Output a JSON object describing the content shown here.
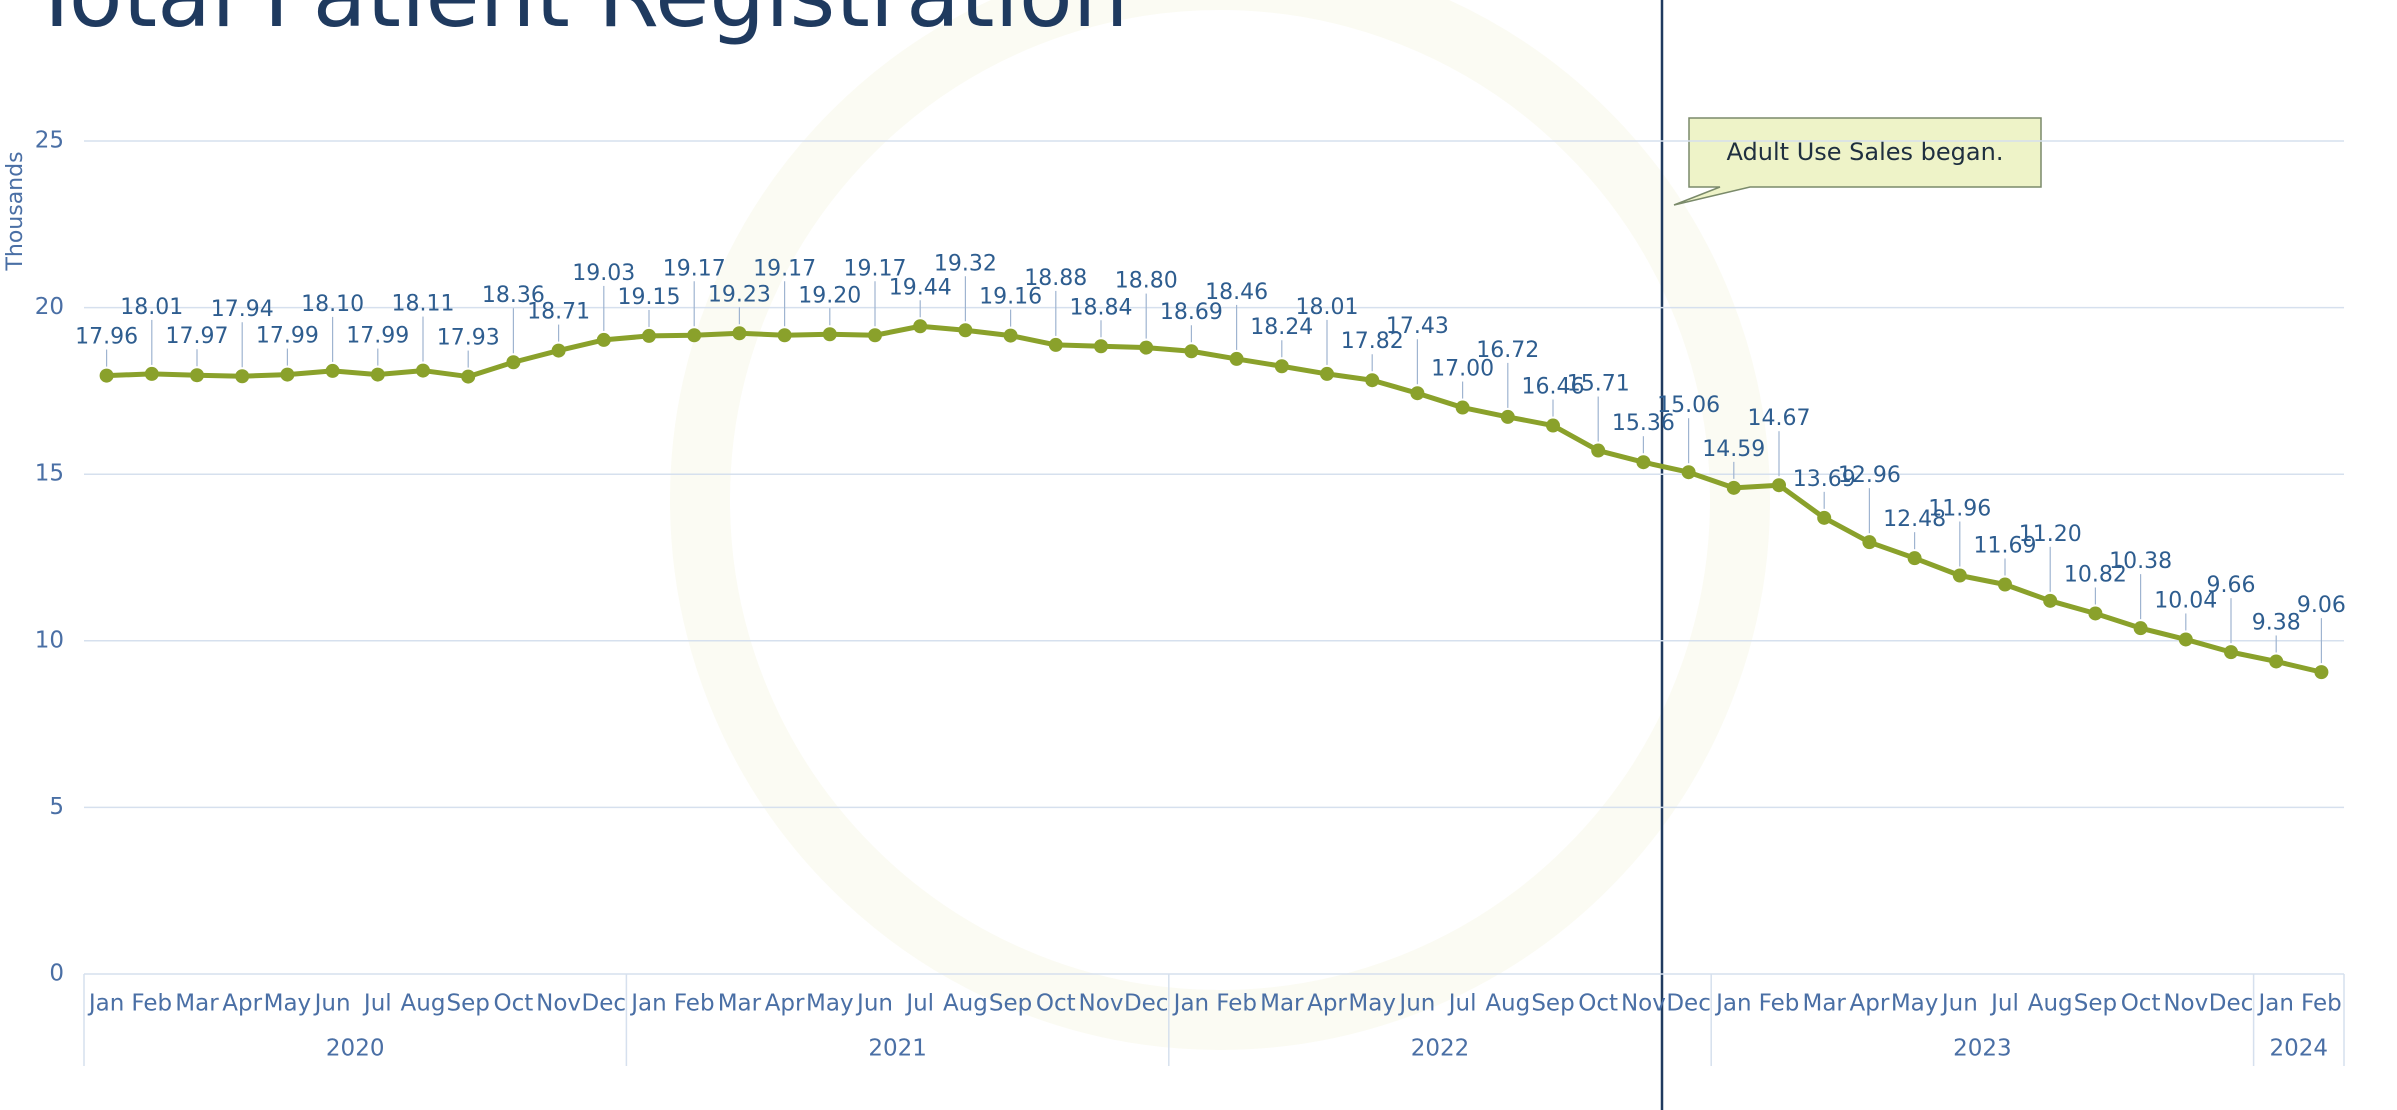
{
  "chart_data": {
    "type": "line",
    "title": "Total Patient Registration",
    "y_label": "Thousands",
    "annotation": "Adult Use Sales began.",
    "groups": [
      {
        "name": "2020",
        "categories": [
          "Jan",
          "Feb",
          "Mar",
          "Apr",
          "May",
          "Jun",
          "Jul",
          "Aug",
          "Sep",
          "Oct",
          "Nov",
          "Dec"
        ]
      },
      {
        "name": "2021",
        "categories": [
          "Jan",
          "Feb",
          "Mar",
          "Apr",
          "May",
          "Jun",
          "Jul",
          "Aug",
          "Sep",
          "Oct",
          "Nov",
          "Dec"
        ]
      },
      {
        "name": "2022",
        "categories": [
          "Jan",
          "Feb",
          "Mar",
          "Apr",
          "May",
          "Jun",
          "Jul",
          "Aug",
          "Sep",
          "Oct",
          "Nov",
          "Dec"
        ]
      },
      {
        "name": "2023",
        "categories": [
          "Jan",
          "Feb",
          "Mar",
          "Apr",
          "May",
          "Jun",
          "Jul",
          "Aug",
          "Sep",
          "Oct",
          "Nov",
          "Dec"
        ]
      },
      {
        "name": "2024",
        "categories": [
          "Jan",
          "Feb"
        ]
      }
    ],
    "series": [
      {
        "color": "#8aa12b",
        "values": [
          17.96,
          18.01,
          17.97,
          17.94,
          17.99,
          18.1,
          17.99,
          18.11,
          17.93,
          18.36,
          18.71,
          19.03,
          19.15,
          19.17,
          19.23,
          19.17,
          19.2,
          19.17,
          19.44,
          19.32,
          19.16,
          18.88,
          18.84,
          18.8,
          18.69,
          18.46,
          18.24,
          18.01,
          17.82,
          17.43,
          17.0,
          16.72,
          16.46,
          15.71,
          15.36,
          15.06,
          14.59,
          14.67,
          13.69,
          12.96,
          12.48,
          11.96,
          11.69,
          11.2,
          10.82,
          10.38,
          10.04,
          9.66,
          9.38,
          9.06
        ],
        "value_labels": [
          "17.96",
          "18.01",
          "17.97",
          "17.94",
          "17.99",
          "18.10",
          "17.99",
          "18.11",
          "17.93",
          "18.36",
          "18.71",
          "19.03",
          "19.15",
          "19.17",
          "19.23",
          "19.17",
          "19.20",
          "19.17",
          "19.44",
          "19.32",
          "19.16",
          "18.88",
          "18.84",
          "18.80",
          "18.69",
          "18.46",
          "18.24",
          "18.01",
          "17.82",
          "17.43",
          "17.00",
          "16.72",
          "16.46",
          "15.71",
          "15.36",
          "15.06",
          "14.59",
          "14.67",
          "13.69",
          "12.96",
          "12.48",
          "11.96",
          "11.69",
          "11.20",
          "10.82",
          "10.38",
          "10.04",
          "9.66",
          "9.38",
          "9.06"
        ]
      }
    ],
    "ylim": [
      0,
      25
    ],
    "yticks": [
      0,
      5,
      10,
      15,
      20,
      25
    ],
    "grid": true
  }
}
